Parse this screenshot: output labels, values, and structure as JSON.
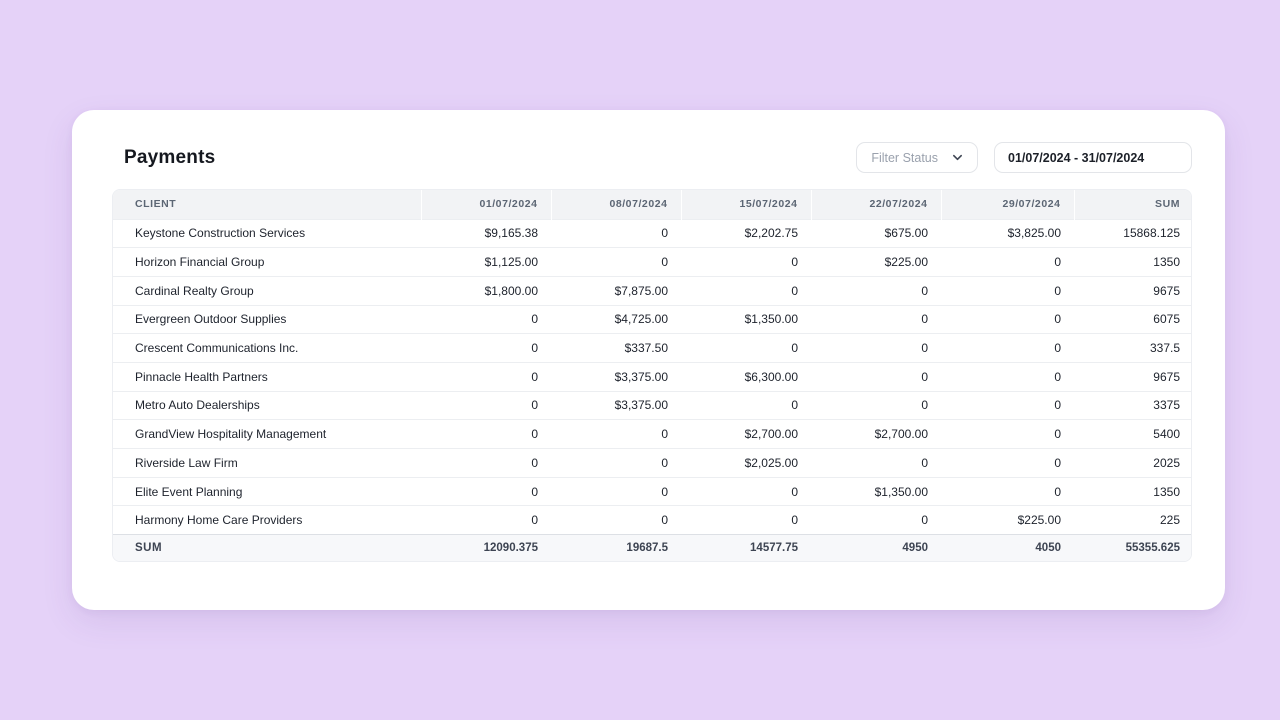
{
  "page": {
    "title": "Payments"
  },
  "toolbar": {
    "filter_label": "Filter Status",
    "date_range_value": "01/07/2024 - 31/07/2024"
  },
  "table": {
    "columns": [
      "CLIENT",
      "01/07/2024",
      "08/07/2024",
      "15/07/2024",
      "22/07/2024",
      "29/07/2024",
      "SUM"
    ],
    "rows": [
      {
        "client": "Keystone Construction Services",
        "values": [
          "$9,165.38",
          "0",
          "$2,202.75",
          "$675.00",
          "$3,825.00",
          "15868.125"
        ]
      },
      {
        "client": "Horizon Financial Group",
        "values": [
          "$1,125.00",
          "0",
          "0",
          "$225.00",
          "0",
          "1350"
        ]
      },
      {
        "client": "Cardinal Realty Group",
        "values": [
          "$1,800.00",
          "$7,875.00",
          "0",
          "0",
          "0",
          "9675"
        ]
      },
      {
        "client": "Evergreen Outdoor Supplies",
        "values": [
          "0",
          "$4,725.00",
          "$1,350.00",
          "0",
          "0",
          "6075"
        ]
      },
      {
        "client": "Crescent Communications Inc.",
        "values": [
          "0",
          "$337.50",
          "0",
          "0",
          "0",
          "337.5"
        ]
      },
      {
        "client": "Pinnacle Health Partners",
        "values": [
          "0",
          "$3,375.00",
          "$6,300.00",
          "0",
          "0",
          "9675"
        ]
      },
      {
        "client": "Metro Auto Dealerships",
        "values": [
          "0",
          "$3,375.00",
          "0",
          "0",
          "0",
          "3375"
        ]
      },
      {
        "client": "GrandView Hospitality Management",
        "values": [
          "0",
          "0",
          "$2,700.00",
          "$2,700.00",
          "0",
          "5400"
        ]
      },
      {
        "client": "Riverside Law Firm",
        "values": [
          "0",
          "0",
          "$2,025.00",
          "0",
          "0",
          "2025"
        ]
      },
      {
        "client": "Elite Event Planning",
        "values": [
          "0",
          "0",
          "0",
          "$1,350.00",
          "0",
          "1350"
        ]
      },
      {
        "client": "Harmony Home Care Providers",
        "values": [
          "0",
          "0",
          "0",
          "0",
          "$225.00",
          "225"
        ]
      }
    ],
    "footer": {
      "label": "SUM",
      "values": [
        "12090.375",
        "19687.5",
        "14577.75",
        "4950",
        "4050",
        "55355.625"
      ]
    }
  },
  "icons": {
    "filter_chevron": "chevron-down-icon"
  },
  "colors": {
    "page_background": "#e5d2f8",
    "card_background": "#ffffff",
    "table_header_background": "#f2f3f5",
    "table_footer_background": "#f7f8fa",
    "header_text": "#5c6674",
    "body_text": "#1d222c",
    "muted_text": "#9aa1ad",
    "row_border": "#eceef1"
  }
}
